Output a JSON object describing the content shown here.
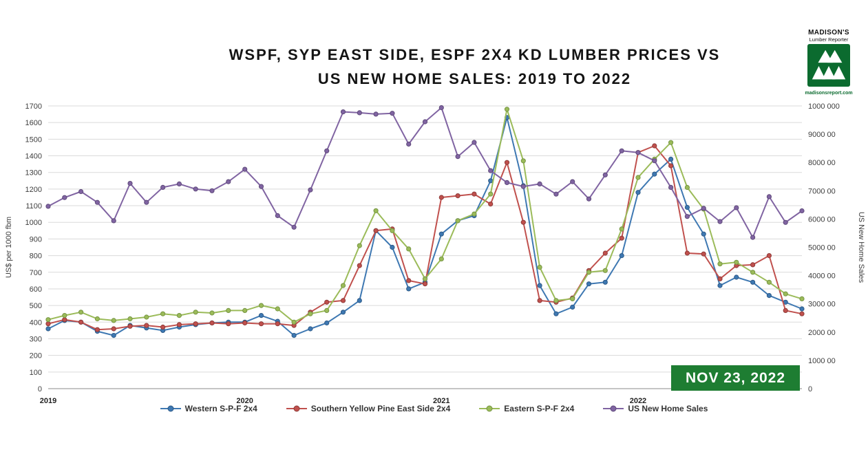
{
  "title": {
    "line1": "WSPF, SYP EAST SIDE, ESPF 2X4 KD LUMBER PRICES VS",
    "line2": "US NEW HOME SALES: 2019 TO 2022"
  },
  "logo": {
    "title": "MADISON'S",
    "subtitle": "Lumber Reporter",
    "url": "madisonsreport.com"
  },
  "date_badge": "NOV 23, 2022",
  "chart_data": {
    "type": "line",
    "title": "WSPF, SYP EAST SIDE, ESPF 2X4 KD LUMBER PRICES VS US NEW HOME SALES: 2019 TO 2022",
    "x_description": "Readings from January 2019 to November 2022, monthly index 0-46",
    "grid": "horizontal",
    "legend_position": "bottom",
    "left_axis": {
      "label": "US$ per 1000 fbm",
      "range": [
        0,
        1700
      ],
      "ticks": [
        0,
        100,
        200,
        300,
        400,
        500,
        600,
        700,
        800,
        900,
        1000,
        1100,
        1200,
        1300,
        1400,
        1500,
        1600,
        1700
      ]
    },
    "right_axis": {
      "label": "US New Home Sales",
      "range": [
        0,
        1000000
      ],
      "ticks": [
        {
          "value": 0,
          "label": "0"
        },
        {
          "value": 100000,
          "label": "1000 00"
        },
        {
          "value": 200000,
          "label": "2000 00"
        },
        {
          "value": 300000,
          "label": "3000 00"
        },
        {
          "value": 400000,
          "label": "4000 00"
        },
        {
          "value": 500000,
          "label": "5000 00"
        },
        {
          "value": 600000,
          "label": "6000 00"
        },
        {
          "value": 700000,
          "label": "7000 00"
        },
        {
          "value": 800000,
          "label": "8000 00"
        },
        {
          "value": 900000,
          "label": "9000 00"
        },
        {
          "value": 1000000,
          "label": "1000 000"
        }
      ]
    },
    "x_ticks": [
      {
        "index": 0,
        "label": "2019"
      },
      {
        "index": 12,
        "label": "2020"
      },
      {
        "index": 24,
        "label": "2021"
      },
      {
        "index": 36,
        "label": "2022"
      }
    ],
    "series": [
      {
        "name": "Western S-P-F 2x4",
        "color": "#3e78b2",
        "marker_stroke": "#2d5a87",
        "axis": "left",
        "values": [
          360,
          410,
          400,
          345,
          320,
          380,
          365,
          350,
          370,
          385,
          395,
          400,
          400,
          440,
          405,
          320,
          360,
          395,
          460,
          530,
          950,
          850,
          600,
          640,
          930,
          1010,
          1040,
          1250,
          1630,
          1220,
          620,
          450,
          490,
          630,
          640,
          800,
          1180,
          1290,
          1380,
          1090,
          930,
          620,
          670,
          640,
          560,
          520,
          480
        ]
      },
      {
        "name": "Southern Yellow Pine East Side 2x4",
        "color": "#c0504d",
        "marker_stroke": "#8e3b39",
        "axis": "left",
        "values": [
          390,
          415,
          400,
          355,
          360,
          375,
          380,
          370,
          385,
          390,
          395,
          390,
          395,
          390,
          390,
          380,
          460,
          520,
          530,
          740,
          950,
          960,
          650,
          630,
          1150,
          1160,
          1170,
          1110,
          1360,
          1000,
          530,
          520,
          545,
          710,
          815,
          905,
          1420,
          1460,
          1340,
          815,
          810,
          660,
          740,
          745,
          800,
          470,
          450
        ]
      },
      {
        "name": "Eastern S-P-F 2x4",
        "color": "#9bbb59",
        "marker_stroke": "#769544",
        "axis": "left",
        "values": [
          415,
          440,
          460,
          420,
          410,
          420,
          430,
          450,
          440,
          460,
          455,
          470,
          470,
          500,
          480,
          400,
          450,
          470,
          620,
          860,
          1070,
          950,
          840,
          660,
          780,
          1010,
          1050,
          1170,
          1680,
          1370,
          730,
          530,
          540,
          700,
          710,
          960,
          1270,
          1380,
          1480,
          1210,
          1080,
          750,
          760,
          700,
          640,
          570,
          540
        ]
      },
      {
        "name": "US New Home Sales",
        "color": "#8064a2",
        "marker_stroke": "#5f4a7a",
        "axis": "right",
        "values": [
          645000,
          676000,
          697000,
          659000,
          594000,
          726000,
          659000,
          712000,
          724000,
          706000,
          700000,
          732000,
          776000,
          715000,
          612000,
          571000,
          703000,
          841000,
          979000,
          976000,
          971000,
          974000,
          865000,
          944000,
          994000,
          821000,
          871000,
          771000,
          729000,
          715000,
          724000,
          688000,
          732000,
          671000,
          756000,
          841000,
          835000,
          806000,
          712000,
          609000,
          638000,
          591000,
          640000,
          535000,
          679000,
          588000,
          629000
        ]
      }
    ]
  }
}
